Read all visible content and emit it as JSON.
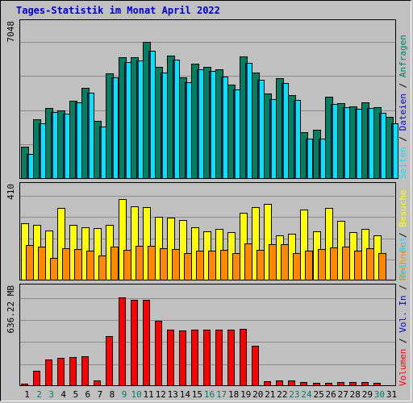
{
  "title": "Tages-Statistik im Monat April 2022",
  "chart_data": {
    "title": "Tages-Statistik im Monat April 2022",
    "days": [
      "1",
      "2",
      "3",
      "4",
      "5",
      "6",
      "7",
      "8",
      "9",
      "10",
      "11",
      "12",
      "13",
      "14",
      "15",
      "16",
      "17",
      "18",
      "19",
      "20",
      "21",
      "22",
      "23",
      "24",
      "25",
      "26",
      "27",
      "28",
      "29",
      "30",
      "31"
    ],
    "weekend_days": [
      "2",
      "3",
      "9",
      "10",
      "16",
      "17",
      "23",
      "24",
      "30"
    ],
    "panels": [
      {
        "type": "bar",
        "max_label": "7048",
        "ylim": [
          0,
          7048
        ],
        "series": [
          {
            "name": "Anfragen",
            "color": "#008060",
            "label_color": "#008060",
            "values": [
              1660,
              3060,
              3660,
              3500,
              4030,
              4680,
              2970,
              5440,
              6270,
              6270,
              7040,
              5760,
              6340,
              5200,
              5900,
              5760,
              5630,
              4830,
              6290,
              5450,
              4370,
              5160,
              4320,
              2380,
              2520,
              4210,
              3900,
              3730,
              3940,
              3680,
              3190
            ]
          },
          {
            "name": "Dateien",
            "color": "#0088ff",
            "label_color": "#0000cc",
            "values": [
              1300,
              2850,
              3440,
              3360,
              3920,
              4420,
              2690,
              5220,
              6000,
              6100,
              6590,
              5480,
              6130,
              4960,
              5640,
              5530,
              5260,
              4580,
              5960,
              5080,
              4110,
              4930,
              4040,
              2060,
              2090,
              3850,
              3680,
              3590,
              3640,
              3400,
              2840
            ]
          },
          {
            "name": "Seiten",
            "color": "#00e5ff",
            "label_color": "#00e5ff",
            "values": [
              1300,
              2850,
              3440,
              3360,
              3920,
              4420,
              2690,
              5220,
              6000,
              6100,
              6590,
              5480,
              6130,
              4960,
              5640,
              5530,
              5260,
              4580,
              5960,
              5080,
              4110,
              4930,
              4040,
              2060,
              2090,
              3850,
              3680,
              3590,
              3640,
              3400,
              2840
            ]
          }
        ]
      },
      {
        "type": "bar",
        "max_label": "410",
        "ylim": [
          0,
          410
        ],
        "series": [
          {
            "name": "Besuche",
            "color": "#ffff00",
            "label_color": "#ffff00",
            "values": [
              277,
              270,
              243,
              350,
              271,
              258,
              253,
              268,
              395,
              358,
              356,
              308,
              305,
              292,
              259,
              239,
              252,
              234,
              330,
              354,
              373,
              218,
              227,
              344,
              237,
              351,
              291,
              234,
              250,
              219,
              0
            ]
          },
          {
            "name": "Rechner",
            "color": "#ff8800",
            "label_color": "#ff8800",
            "values": [
              170,
              163,
              109,
              157,
              151,
              146,
              121,
              165,
              150,
              169,
              168,
              157,
              151,
              131,
              144,
              143,
              149,
              134,
              180,
              147,
              177,
              175,
              134,
              144,
              154,
              161,
              163,
              146,
              156,
              134,
              0
            ]
          }
        ]
      },
      {
        "type": "bar",
        "max_label": "636.22 MB",
        "ylim": [
          0,
          636.22
        ],
        "series": [
          {
            "name": "Volumen",
            "color": "#ff0000",
            "label_color": "#ff0000",
            "values": [
              18,
              110,
              190,
              205,
              210,
              215,
              40,
              360,
              640,
              625,
              625,
              470,
              405,
              400,
              405,
              410,
              410,
              405,
              415,
              290,
              35,
              38,
              38,
              30,
              25,
              25,
              30,
              30,
              30,
              25,
              0
            ]
          }
        ],
        "extra_labels": [
          {
            "name": "Vol. In",
            "label_color": "#0000cc"
          },
          {
            "name": "Vol. Out",
            "label_color": "#00e5ff"
          }
        ]
      }
    ]
  }
}
